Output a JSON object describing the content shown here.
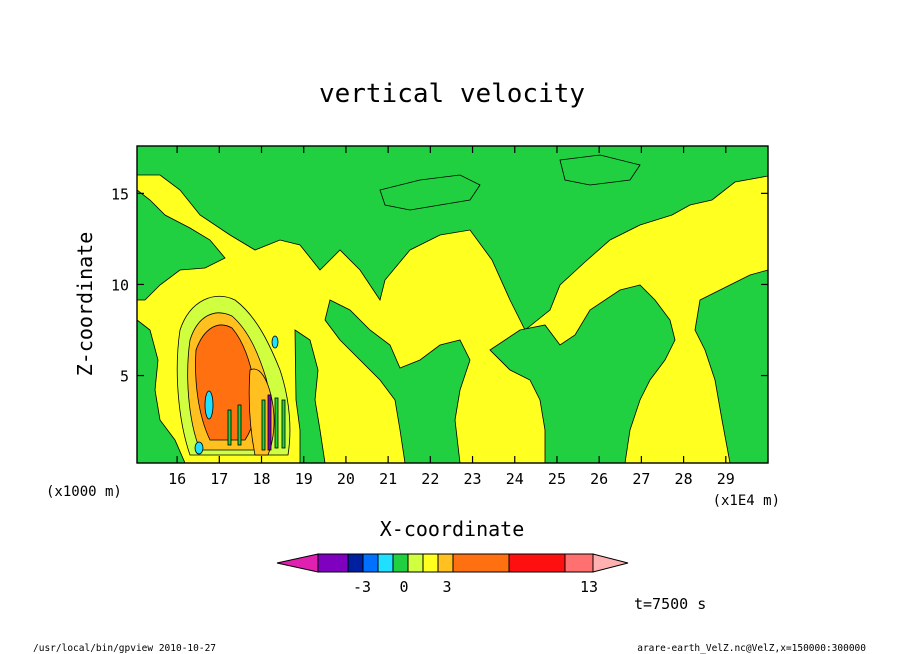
{
  "chart_data": {
    "type": "heatmap",
    "title": "vertical velocity",
    "xlabel": "X-coordinate",
    "ylabel": "Z-coordinate",
    "x_unit_left": "(x1000 m)",
    "x_unit_right": "(x1E4 m)",
    "xlim": [
      15.05,
      30.0
    ],
    "ylim": [
      0.2,
      17.6
    ],
    "x_ticks": [
      "16",
      "17",
      "18",
      "19",
      "20",
      "21",
      "22",
      "23",
      "24",
      "25",
      "26",
      "27",
      "28",
      "29"
    ],
    "x_tick_values": [
      16,
      17,
      18,
      19,
      20,
      21,
      22,
      23,
      24,
      25,
      26,
      27,
      28,
      29
    ],
    "y_ticks": [
      "5",
      "10",
      "15"
    ],
    "y_tick_values": [
      5,
      10,
      15
    ],
    "grid": false,
    "colorbar": {
      "labels": [
        "-3",
        "0",
        "3",
        "13"
      ],
      "colors": [
        "#e020b0",
        "#8000c0",
        "#0020a0",
        "#0070ff",
        "#20e0ff",
        "#20d040",
        "#d0ff40",
        "#ffff20",
        "#ffc020",
        "#ff7010",
        "#ff1010",
        "#ff7070",
        "#ffb0b0"
      ]
    },
    "regions": [
      {
        "level": "0..1",
        "color": "#ffff20",
        "x_range": [
          15.05,
          30.0
        ],
        "z_range": [
          0.2,
          17.6
        ],
        "note": "background"
      },
      {
        "level": "-1..0",
        "color": "#20d040",
        "description": "large green areas across upper and right domain"
      },
      {
        "level": "3..13",
        "color": "#ff7010",
        "center": [
          17.0,
          6.0
        ],
        "description": "orange updraft core"
      },
      {
        "level": "-3..-1",
        "color": "#20e0ff",
        "center": [
          16.8,
          2.5
        ],
        "description": "small cyan downdraft cells"
      }
    ],
    "time_label": "t=7500 s"
  },
  "footer": {
    "left": "/usr/local/bin/gpview   2010-10-27",
    "right": "arare-earth_VelZ.nc@VelZ,x=150000:300000"
  }
}
